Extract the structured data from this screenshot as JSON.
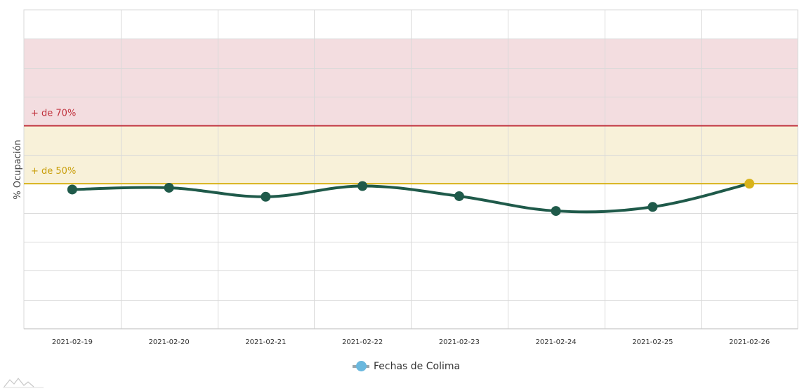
{
  "chart_data": {
    "type": "line",
    "title": "",
    "xlabel": "",
    "ylabel": "% Ocupación",
    "categories": [
      "2021-02-19",
      "2021-02-20",
      "2021-02-21",
      "2021-02-22",
      "2021-02-23",
      "2021-02-24",
      "2021-02-25",
      "2021-02-26"
    ],
    "series": [
      {
        "name": "Fechas de Colima",
        "values": [
          48.0,
          48.6,
          45.5,
          49.2,
          45.7,
          40.6,
          42.0,
          50.0
        ],
        "color": "#1f5a4a",
        "highlight_last_color": "#d8b31a"
      }
    ],
    "ylim": [
      0,
      110
    ],
    "grid": true,
    "legend_position": "bottom-center",
    "bands": [
      {
        "label": "+ de 70%",
        "from": 70,
        "to": 100,
        "fill": "#f3dde0",
        "line_color": "#c0313c",
        "text_color": "#c0313c"
      },
      {
        "label": "+ de 50%",
        "from": 50,
        "to": 70,
        "fill": "#f8f1d9",
        "line_color": "#d8b31a",
        "text_color": "#c99e0a"
      }
    ]
  },
  "legend": {
    "label": "Fechas de Colima"
  }
}
